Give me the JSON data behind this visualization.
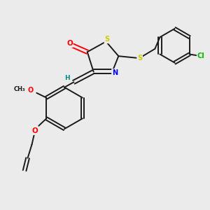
{
  "bg_color": "#ebebeb",
  "bond_color": "#1a1a1a",
  "atom_colors": {
    "O": "#ff0000",
    "N": "#0000ff",
    "S": "#cccc00",
    "Cl": "#00bb00",
    "H": "#008888",
    "C": "#1a1a1a"
  }
}
